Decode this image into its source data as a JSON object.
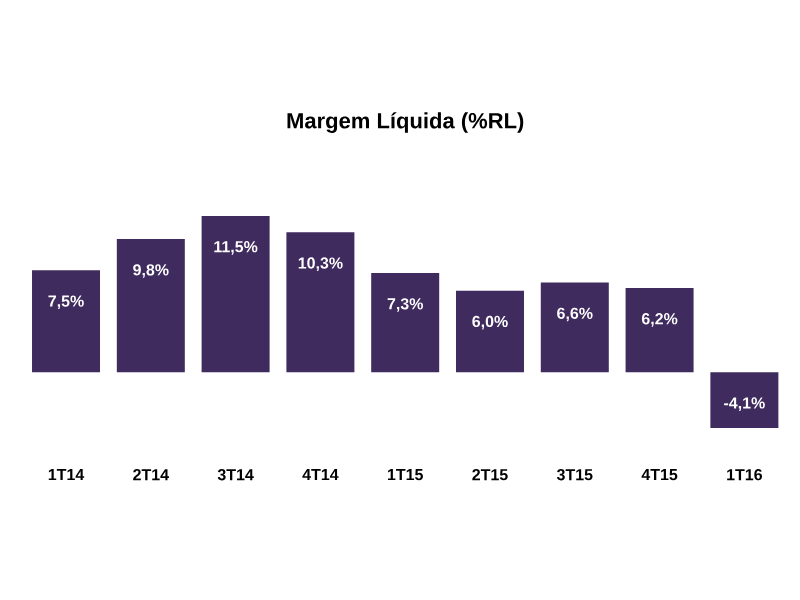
{
  "chart_data": {
    "type": "bar",
    "title": "Margem Líquida (%RL)",
    "categories": [
      "1T14",
      "2T14",
      "3T14",
      "4T14",
      "1T15",
      "2T15",
      "3T15",
      "4T15",
      "1T16"
    ],
    "values": [
      7.5,
      9.8,
      11.5,
      10.3,
      7.3,
      6.0,
      6.6,
      6.2,
      -4.1
    ],
    "value_labels": [
      "7,5%",
      "9,8%",
      "11,5%",
      "10,3%",
      "7,3%",
      "6,0%",
      "6,6%",
      "6,2%",
      "-4,1%"
    ],
    "color": "#3f2b5e"
  }
}
